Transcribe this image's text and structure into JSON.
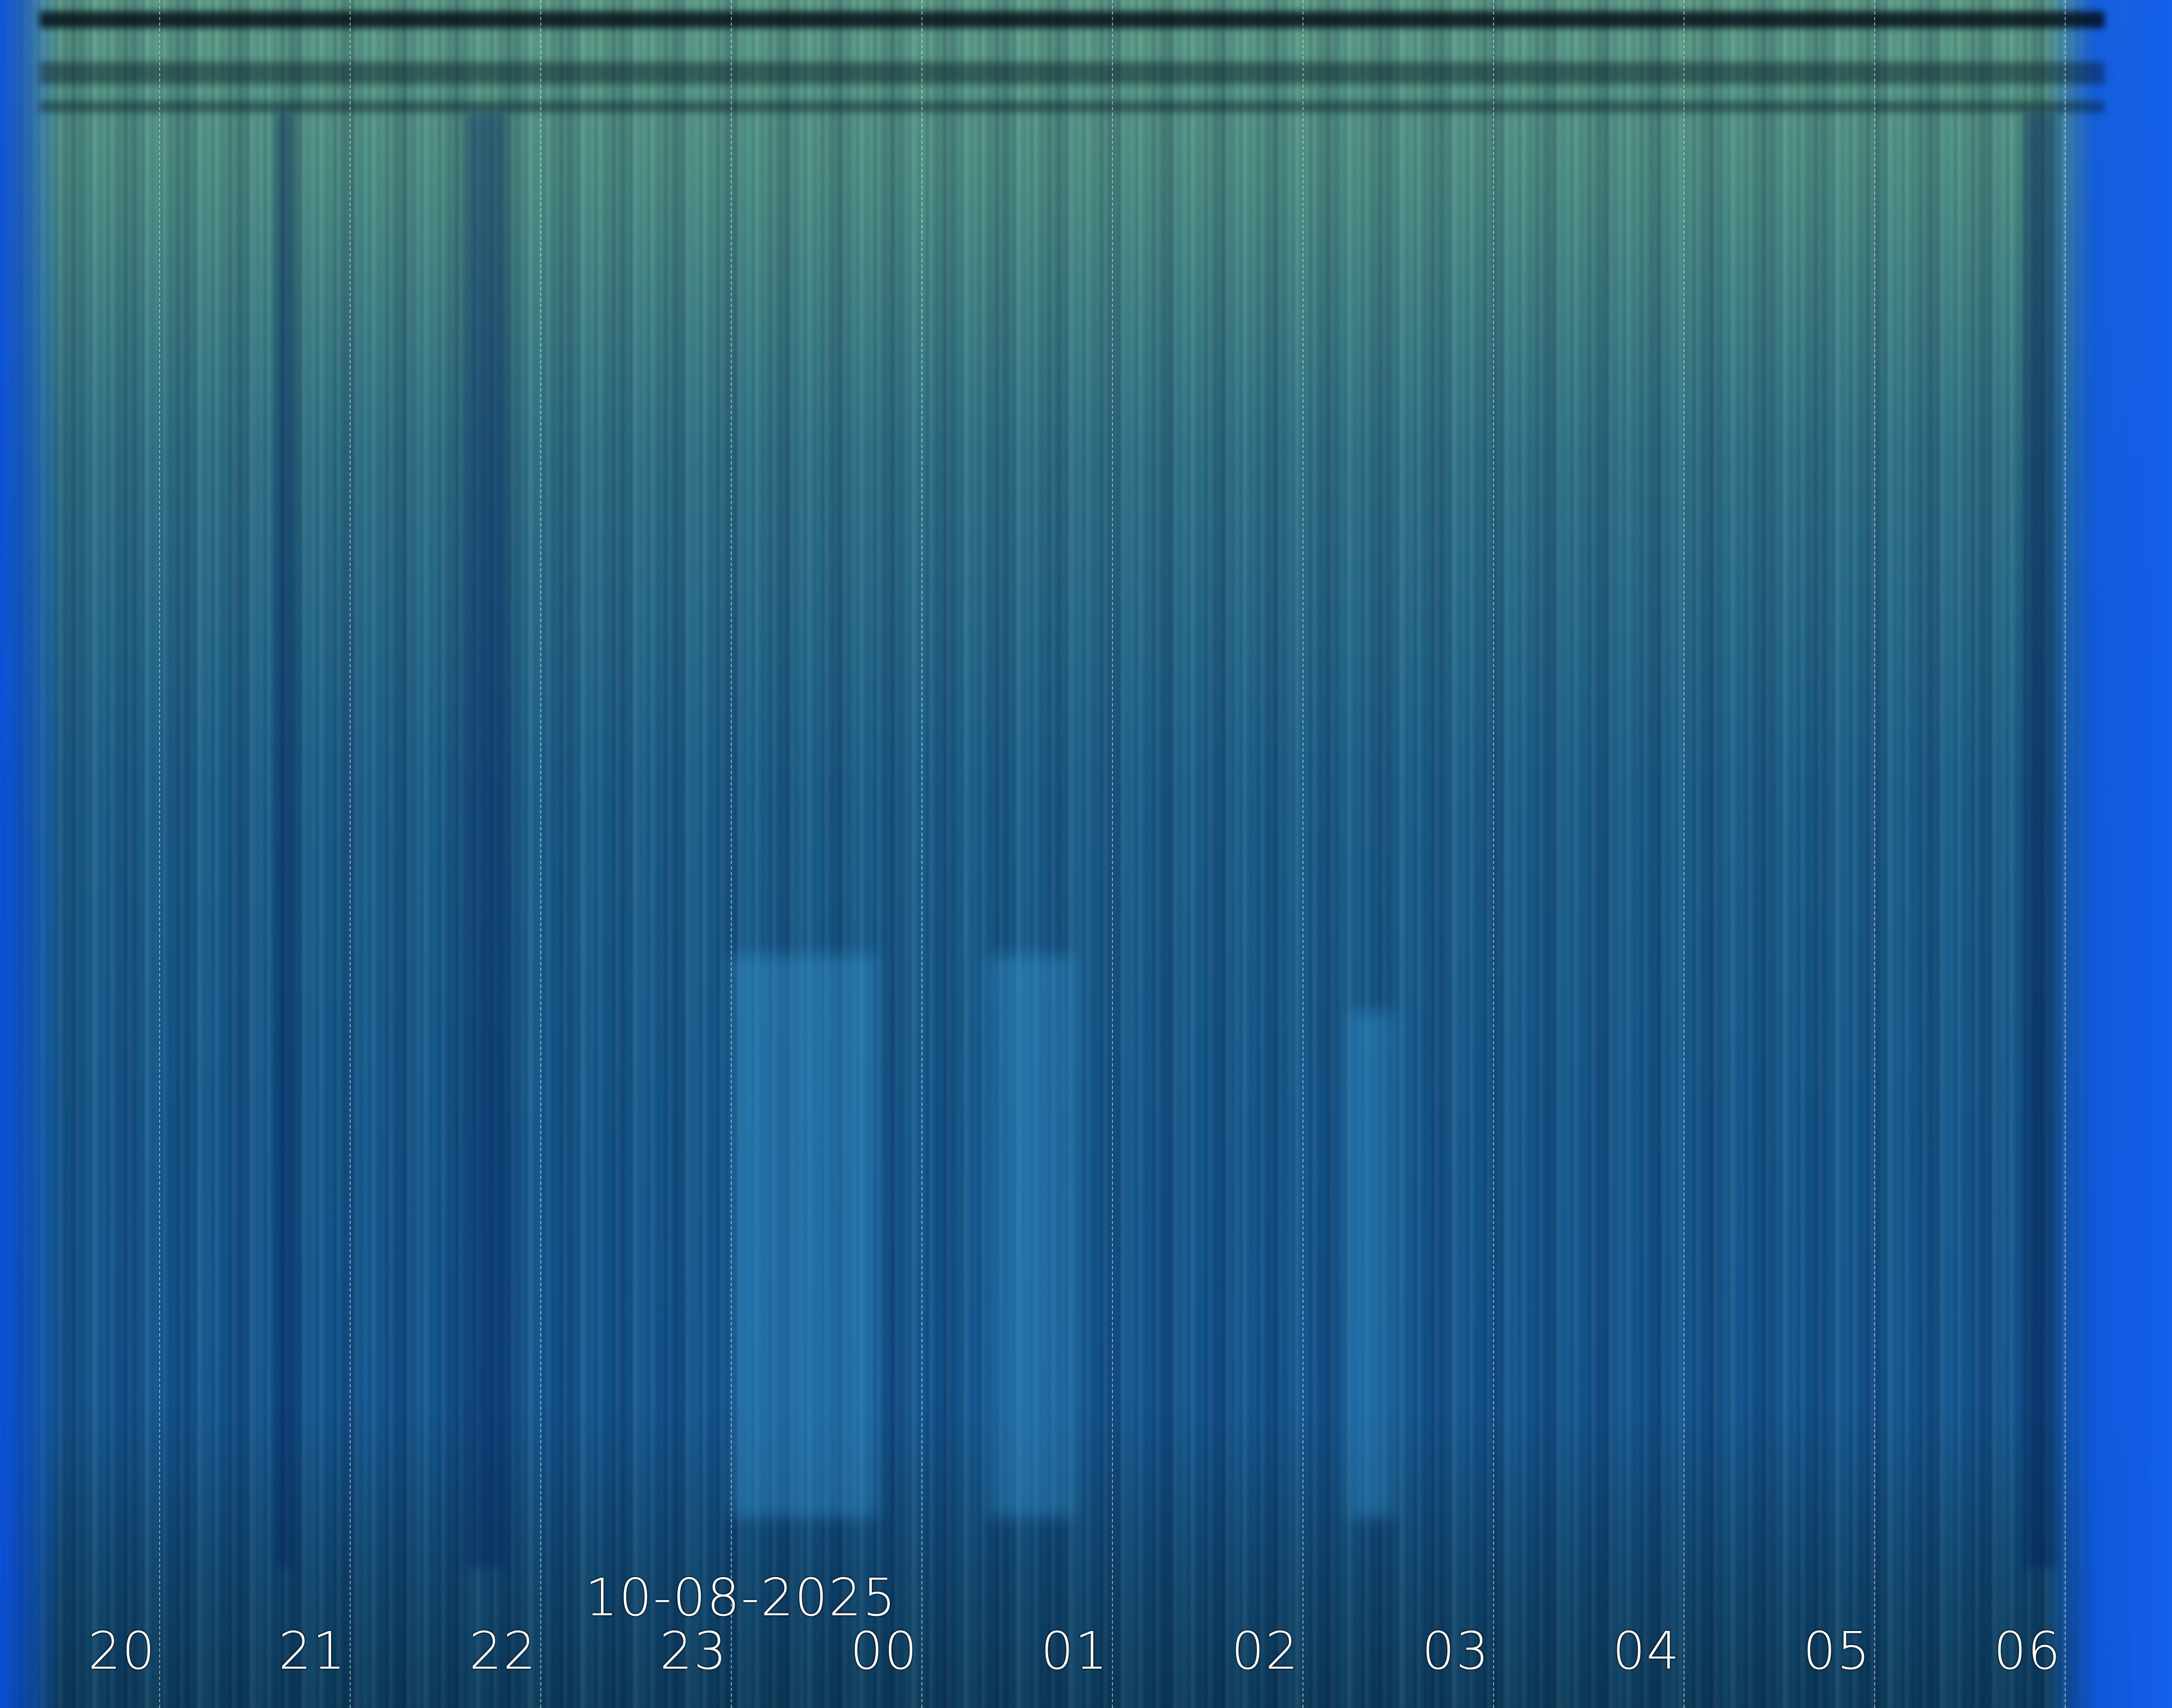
{
  "date_label": "10-08-2025",
  "hour_labels": [
    "20",
    "21",
    "22",
    "23",
    "00",
    "01",
    "02",
    "03",
    "04",
    "05",
    "06"
  ],
  "colors": {
    "sky_top": "#5f9f88",
    "sky_bottom": "#0c3c5c",
    "edge_blue": "#0a50dc",
    "label": "#ffffff"
  }
}
